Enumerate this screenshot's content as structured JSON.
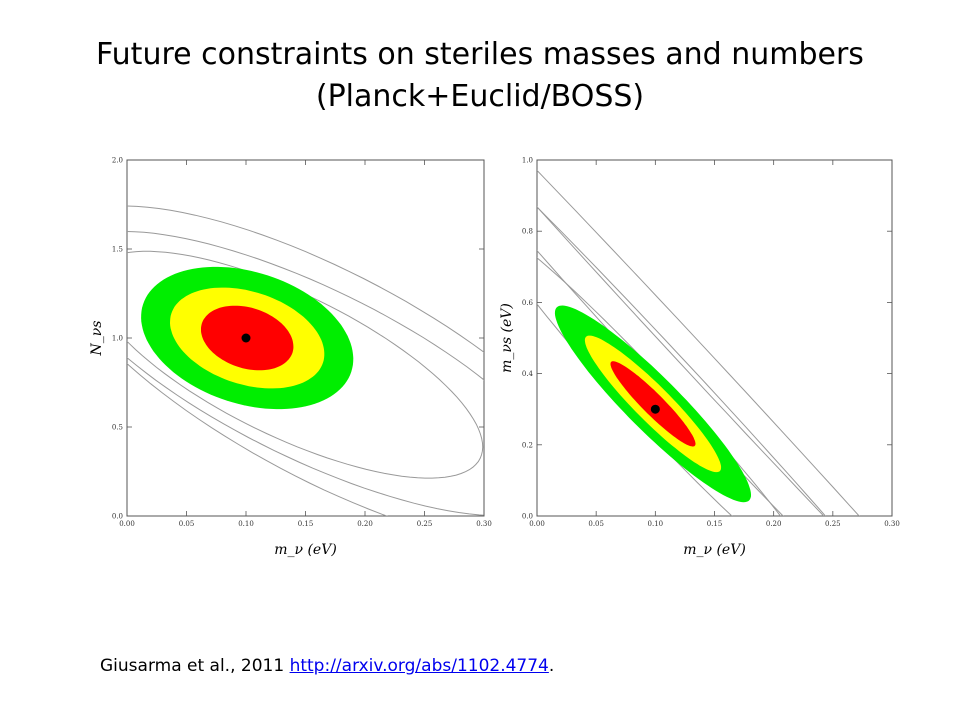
{
  "slide": {
    "title_line1": "Future constraints on steriles masses and numbers",
    "title_line2": "(Planck+Euclid/BOSS)"
  },
  "citation": {
    "text": "Giusarma et al., 2011 ",
    "link": "http://arxiv.org/abs/1102.4774",
    "suffix": "."
  },
  "colors": {
    "inner": "#ff0000",
    "middle": "#ffff00",
    "outer": "#00ee00",
    "contour": "#999999",
    "point": "#000000"
  },
  "chart_data": [
    {
      "type": "scatter",
      "xlabel": "m_ν (eV)",
      "ylabel": "N_νs",
      "xlim": [
        0.0,
        0.3
      ],
      "ylim": [
        0.0,
        2.0
      ],
      "xticks": [
        "0.00",
        "0.05",
        "0.10",
        "0.15",
        "0.20",
        "0.25",
        "0.30"
      ],
      "yticks": [
        "0.0",
        "0.5",
        "1.0",
        "1.5",
        "2.0"
      ],
      "fiducial": {
        "x": 0.1,
        "y": 1.0
      },
      "filled_regions": [
        {
          "level": 3,
          "center": [
            0.101,
            1.0
          ],
          "semi_axes": [
            0.092,
            0.37
          ],
          "rotation_deg": -18
        },
        {
          "level": 2,
          "center": [
            0.101,
            1.0
          ],
          "semi_axes": [
            0.067,
            0.26
          ],
          "rotation_deg": -18
        },
        {
          "level": 1,
          "center": [
            0.101,
            1.0
          ],
          "semi_axes": [
            0.04,
            0.17
          ],
          "rotation_deg": -18
        }
      ],
      "open_contours": [
        {
          "center": [
            0.135,
            0.85
          ],
          "semi_axes": [
            0.18,
            0.4
          ],
          "rotation_deg": -26
        },
        {
          "center": [
            0.155,
            0.8
          ],
          "semi_axes": [
            0.23,
            0.48
          ],
          "rotation_deg": -26
        },
        {
          "center": [
            0.17,
            0.78
          ],
          "semi_axes": [
            0.26,
            0.58
          ],
          "rotation_deg": -28
        }
      ]
    },
    {
      "type": "scatter",
      "xlabel": "m_ν (eV)",
      "ylabel": "m_νs (eV)",
      "xlim": [
        0.0,
        0.3
      ],
      "ylim": [
        0.0,
        1.0
      ],
      "xticks": [
        "0.00",
        "0.05",
        "0.10",
        "0.15",
        "0.20",
        "0.25",
        "0.30"
      ],
      "yticks": [
        "0.0",
        "0.2",
        "0.4",
        "0.6",
        "0.8",
        "1.0"
      ],
      "fiducial": {
        "x": 0.1,
        "y": 0.3
      },
      "filled_regions": [
        {
          "level": 3,
          "center": [
            0.098,
            0.315
          ],
          "semi_axes": [
            0.115,
            0.075
          ],
          "rotation_deg": -45
        },
        {
          "level": 2,
          "center": [
            0.098,
            0.315
          ],
          "semi_axes": [
            0.08,
            0.05
          ],
          "rotation_deg": -45
        },
        {
          "level": 1,
          "center": [
            0.098,
            0.315
          ],
          "semi_axes": [
            0.05,
            0.03
          ],
          "rotation_deg": -45
        }
      ],
      "open_contours": [
        {
          "center": [
            0.1,
            0.31
          ],
          "semi_axes": [
            0.2,
            0.065
          ],
          "rotation_deg": -47
        },
        {
          "center": [
            0.12,
            0.38
          ],
          "semi_axes": [
            0.32,
            0.05
          ],
          "rotation_deg": -47
        },
        {
          "center": [
            0.14,
            0.42
          ],
          "semi_axes": [
            0.42,
            0.04
          ],
          "rotation_deg": -47
        }
      ]
    }
  ]
}
